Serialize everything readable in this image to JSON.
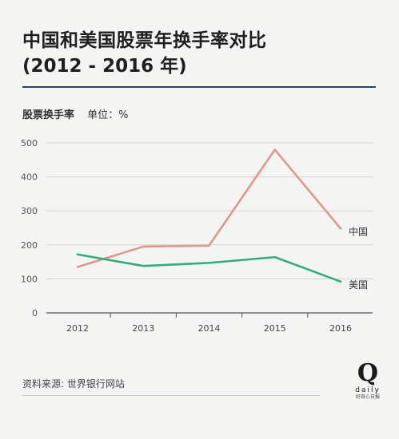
{
  "header": {
    "title": "中国和美国股票年换手率对比",
    "subtitle": "(2012 - 2016 年)"
  },
  "axis_caption": {
    "metric": "股票换手率",
    "unit": "单位：%"
  },
  "source": "资料来源: 世界银行网站",
  "logo": {
    "mark": "Q",
    "brand": "daily",
    "brand_cn": "好奇心日报"
  },
  "chart_data": {
    "type": "line",
    "x": [
      "2012",
      "2013",
      "2014",
      "2015",
      "2016"
    ],
    "ylim": [
      0,
      500
    ],
    "yticks": [
      0,
      100,
      200,
      300,
      400,
      500
    ],
    "grid": true,
    "series": [
      {
        "name": "中国",
        "values": [
          135,
          195,
          198,
          480,
          248
        ],
        "color": "#e0968a"
      },
      {
        "name": "美国",
        "values": [
          172,
          138,
          147,
          164,
          92
        ],
        "color": "#2fae7c"
      }
    ]
  }
}
